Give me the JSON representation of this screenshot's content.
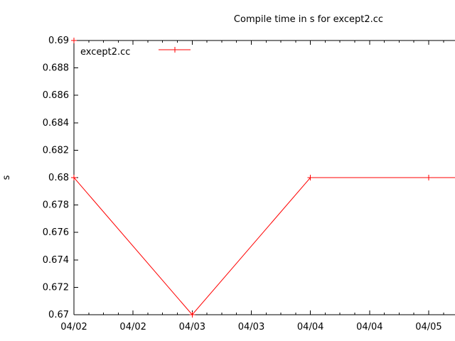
{
  "title": "Compile time in s for except2.cc",
  "legend": {
    "label": "except2.cc"
  },
  "chart_data": {
    "type": "line",
    "title": "Compile time in s for except2.cc",
    "xlabel": "",
    "ylabel": "s",
    "grid": false,
    "background_color": "#ffffff",
    "legend_position": "top-left-inside",
    "series": [
      {
        "name": "except2.cc",
        "color": "#ff0000",
        "marker": "plus",
        "points": [
          {
            "date": "04/02",
            "day": 0,
            "value": 0.69
          },
          {
            "date": "04/02",
            "day": 0,
            "value": 0.68
          },
          {
            "date": "04/03",
            "day": 1,
            "value": 0.67
          },
          {
            "date": "04/04",
            "day": 2,
            "value": 0.68
          },
          {
            "date": "04/05",
            "day": 3,
            "value": 0.68
          }
        ],
        "line_continues_past_right_edge_at_value": 0.68
      }
    ],
    "x_axis": {
      "type": "time",
      "visible_range_days": [
        0,
        3.2226
      ],
      "major_tick_every_days": 0.5,
      "minor_tick_every_days": 0.125,
      "major_tick_labels": [
        "04/02",
        "04/02",
        "04/03",
        "04/03",
        "04/04",
        "04/04",
        "04/05"
      ]
    },
    "y_axis": {
      "label": "s",
      "range": [
        0.67,
        0.69
      ],
      "tick_step": 0.002,
      "tick_labels": [
        "0.69",
        "0.688",
        "0.686",
        "0.684",
        "0.682",
        "0.68",
        "0.678",
        "0.676",
        "0.674",
        "0.672",
        "0.67"
      ]
    }
  }
}
